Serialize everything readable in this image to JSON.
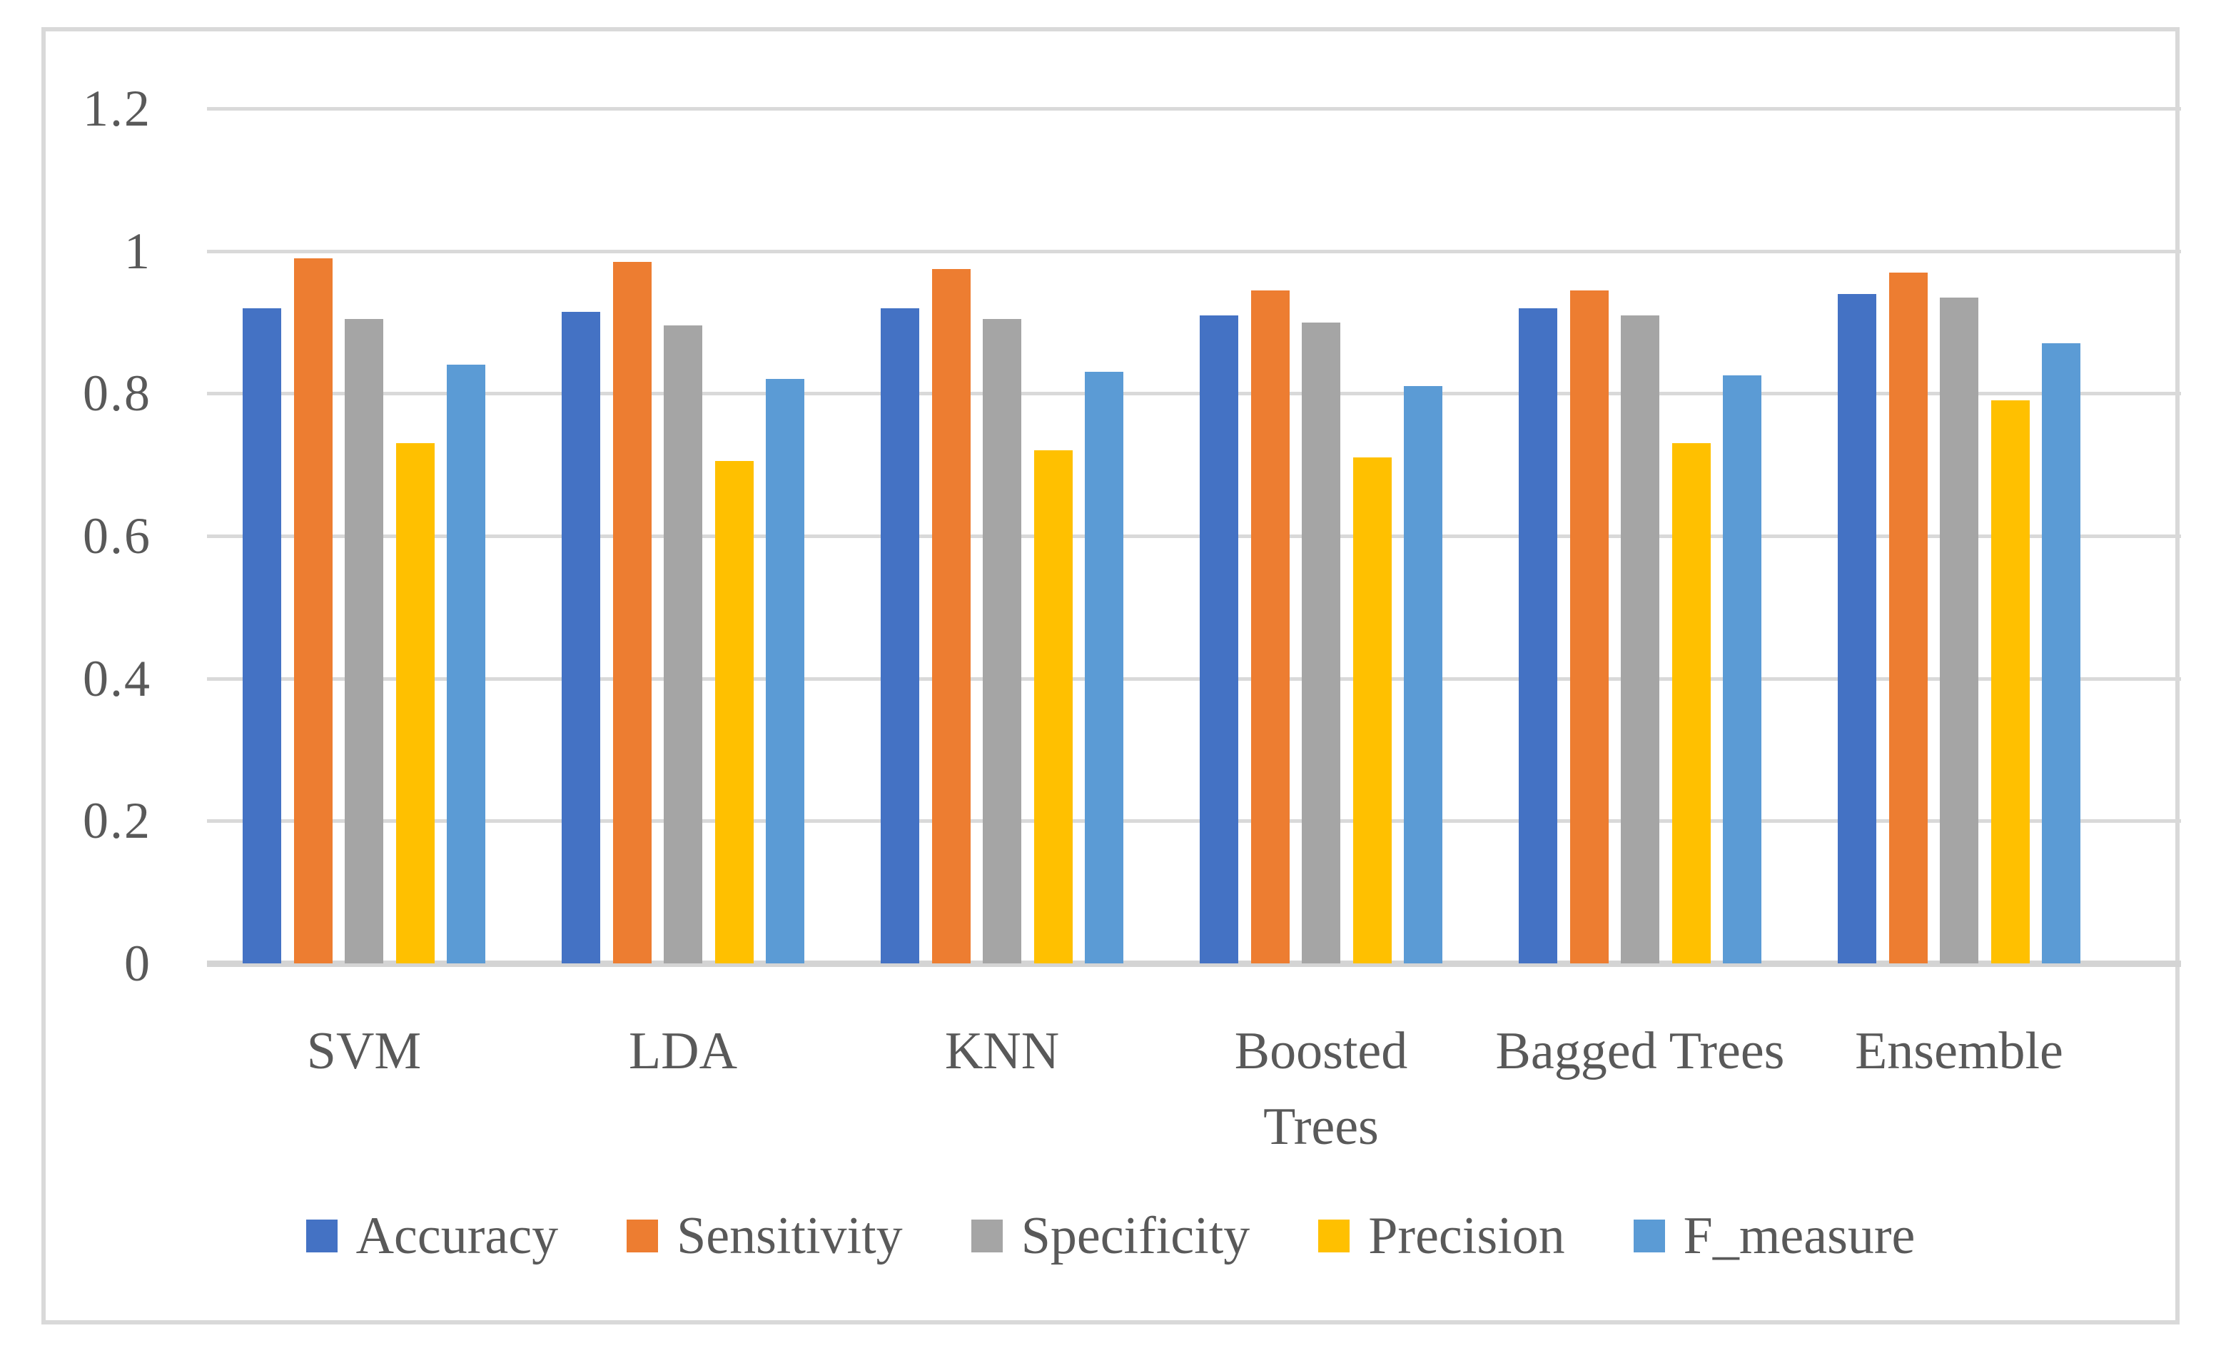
{
  "figure": {
    "background_color": "#ffffff",
    "frame_border_color": "#d9d9d9",
    "gridline_color": "#d9d9d9",
    "axis_line_color": "#d4d4d4",
    "text_color": "#595959"
  },
  "chart_data": {
    "type": "bar",
    "title": "",
    "xlabel": "",
    "ylabel": "",
    "grid": "horizontal",
    "legend_position": "bottom",
    "categories": [
      "SVM",
      "LDA",
      "KNN",
      "Boosted\nTrees",
      "Bagged Trees",
      "Ensemble"
    ],
    "series": [
      {
        "name": "Accuracy",
        "color": "#4472C4",
        "values": [
          0.92,
          0.915,
          0.92,
          0.91,
          0.92,
          0.94
        ]
      },
      {
        "name": "Sensitivity",
        "color": "#ED7D31",
        "values": [
          0.99,
          0.985,
          0.975,
          0.945,
          0.945,
          0.97
        ]
      },
      {
        "name": "Specificity",
        "color": "#A5A5A5",
        "values": [
          0.905,
          0.895,
          0.905,
          0.9,
          0.91,
          0.935
        ]
      },
      {
        "name": "Precision",
        "color": "#FFC000",
        "values": [
          0.73,
          0.705,
          0.72,
          0.71,
          0.73,
          0.79
        ]
      },
      {
        "name": "F_measure",
        "color": "#5B9BD5",
        "values": [
          0.84,
          0.82,
          0.83,
          0.81,
          0.825,
          0.87
        ]
      }
    ],
    "y_axis": {
      "min": 0,
      "max": 1.2,
      "tick_interval": 0.2,
      "ticks": [
        0,
        0.2,
        0.4,
        0.6,
        0.8,
        1,
        1.2
      ],
      "tick_labels": [
        "0",
        "0.2",
        "0.4",
        "0.6",
        "0.8",
        "1",
        "1.2"
      ]
    }
  }
}
